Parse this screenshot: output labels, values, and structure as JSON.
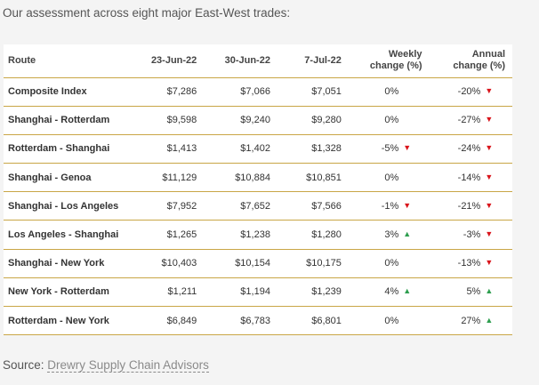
{
  "intro": "Our assessment across eight major East-West trades:",
  "table": {
    "headers": {
      "route": "Route",
      "d1": "23-Jun-22",
      "d2": "30-Jun-22",
      "d3": "7-Jul-22",
      "weekly_line1": "Weekly",
      "weekly_line2": "change (%)",
      "annual_line1": "Annual",
      "annual_line2": "change (%)"
    },
    "rows": [
      {
        "route": "Composite Index",
        "d1": "$7,286",
        "d2": "$7,066",
        "d3": "$7,051",
        "weekly": "0%",
        "weekly_dir": "none",
        "annual": "-20%",
        "annual_dir": "down"
      },
      {
        "route": "Shanghai - Rotterdam",
        "d1": "$9,598",
        "d2": "$9,240",
        "d3": "$9,280",
        "weekly": "0%",
        "weekly_dir": "none",
        "annual": "-27%",
        "annual_dir": "down"
      },
      {
        "route": "Rotterdam - Shanghai",
        "d1": "$1,413",
        "d2": "$1,402",
        "d3": "$1,328",
        "weekly": "-5%",
        "weekly_dir": "down",
        "annual": "-24%",
        "annual_dir": "down"
      },
      {
        "route": "Shanghai - Genoa",
        "d1": "$11,129",
        "d2": "$10,884",
        "d3": "$10,851",
        "weekly": "0%",
        "weekly_dir": "none",
        "annual": "-14%",
        "annual_dir": "down"
      },
      {
        "route": "Shanghai - Los Angeles",
        "d1": "$7,952",
        "d2": "$7,652",
        "d3": "$7,566",
        "weekly": "-1%",
        "weekly_dir": "down",
        "annual": "-21%",
        "annual_dir": "down"
      },
      {
        "route": "Los Angeles - Shanghai",
        "d1": "$1,265",
        "d2": "$1,238",
        "d3": "$1,280",
        "weekly": "3%",
        "weekly_dir": "up",
        "annual": "-3%",
        "annual_dir": "down"
      },
      {
        "route": "Shanghai - New York",
        "d1": "$10,403",
        "d2": "$10,154",
        "d3": "$10,175",
        "weekly": "0%",
        "weekly_dir": "none",
        "annual": "-13%",
        "annual_dir": "down"
      },
      {
        "route": "New York - Rotterdam",
        "d1": "$1,211",
        "d2": "$1,194",
        "d3": "$1,239",
        "weekly": "4%",
        "weekly_dir": "up",
        "annual": "5%",
        "annual_dir": "up"
      },
      {
        "route": "Rotterdam - New York",
        "d1": "$6,849",
        "d2": "$6,783",
        "d3": "$6,801",
        "weekly": "0%",
        "weekly_dir": "none",
        "annual": "27%",
        "annual_dir": "up"
      }
    ]
  },
  "source": {
    "label": "Source:",
    "link": "Drewry Supply Chain Advisors"
  },
  "colors": {
    "rule": "#c9a646",
    "down": "#d9141b",
    "up": "#2e9e4f"
  },
  "icons": {
    "up": "triangle-up-icon",
    "down": "triangle-down-icon"
  }
}
